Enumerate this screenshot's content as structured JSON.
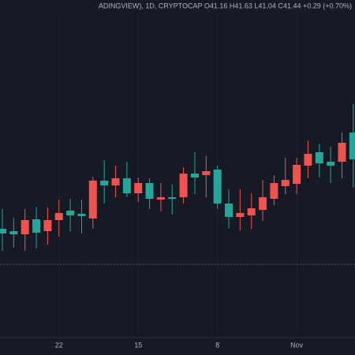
{
  "chart_data": {
    "type": "candlestick",
    "title": "ADINGVIEW), 1D, CRYPTOCAP O41.16 H41.63 L41.04 C41.44 +0.29 (+0.70%)",
    "categories": [
      null,
      null,
      null,
      null,
      null,
      "22",
      null,
      null,
      null,
      null,
      null,
      null,
      "15",
      null,
      null,
      null,
      null,
      null,
      null,
      "8",
      null,
      null,
      null,
      null,
      null,
      null,
      "Nov",
      null,
      null,
      null,
      null,
      null
    ],
    "open": [
      41.28,
      41.26,
      41.62,
      41.3,
      41.62,
      41.8,
      41.74,
      41.72,
      42.62,
      42.5,
      42.68,
      42.3,
      42.56,
      42.16,
      42.2,
      42.16,
      42.8,
      42.7,
      42.86,
      42.04,
      41.7,
      41.8,
      41.92,
      42.2,
      42.56,
      42.64,
      43.02,
      43.3,
      43.06,
      43.0,
      43.58,
      43.16
    ],
    "high": [
      41.9,
      41.68,
      41.9,
      41.96,
      41.94,
      42.14,
      42.16,
      42.14,
      42.72,
      43.14,
      43.0,
      43.1,
      42.7,
      42.68,
      42.56,
      42.52,
      42.96,
      43.34,
      43.24,
      43.0,
      42.4,
      42.4,
      42.3,
      42.64,
      42.76,
      43.2,
      43.2,
      43.64,
      43.56,
      43.48,
      43.84,
      44.56
    ],
    "low": [
      40.84,
      40.92,
      40.84,
      40.9,
      41.0,
      41.2,
      41.34,
      41.28,
      41.4,
      42.04,
      42.2,
      42.2,
      42.08,
      41.9,
      41.84,
      41.76,
      42.04,
      42.28,
      42.2,
      41.9,
      41.4,
      41.36,
      41.4,
      41.6,
      42.0,
      42.28,
      42.28,
      42.68,
      42.7,
      42.56,
      42.68,
      42.44
    ],
    "close": [
      41.4,
      41.34,
      41.26,
      41.64,
      41.34,
      41.62,
      41.86,
      41.78,
      41.66,
      42.62,
      42.5,
      42.68,
      42.3,
      42.56,
      42.14,
      42.2,
      42.2,
      42.8,
      42.76,
      42.9,
      42.04,
      41.7,
      41.74,
      41.88,
      42.16,
      42.48,
      42.54,
      43.0,
      43.34,
      43.1,
      43.1,
      43.84
    ],
    "price_line": 40.5,
    "ylim": [
      38.6,
      47.2
    ],
    "up_color": "#26a69a",
    "down_color": "#ef5350"
  }
}
